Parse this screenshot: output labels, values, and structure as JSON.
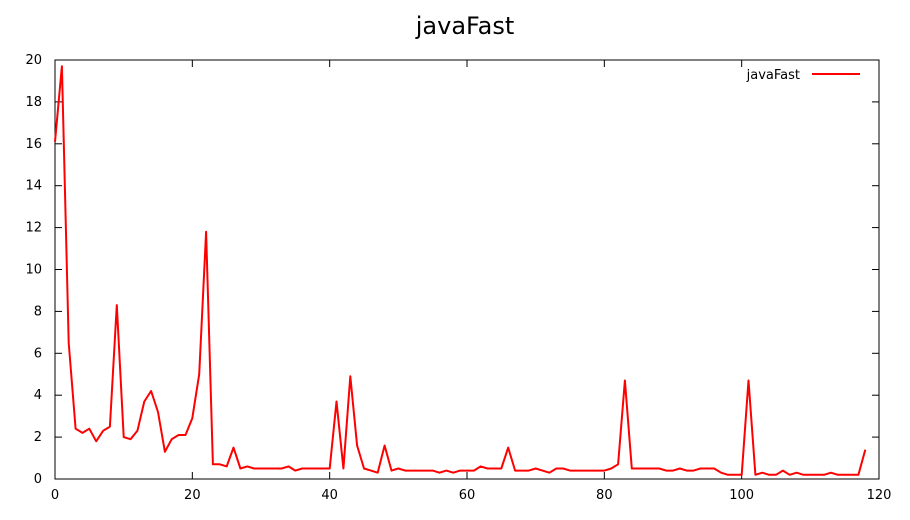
{
  "chart_data": {
    "type": "line",
    "title": "javaFast",
    "xlabel": "",
    "ylabel": "",
    "xlim": [
      0,
      120
    ],
    "ylim": [
      0,
      20
    ],
    "xticks": [
      0,
      20,
      40,
      60,
      80,
      100,
      120
    ],
    "yticks": [
      0,
      2,
      4,
      6,
      8,
      10,
      12,
      14,
      16,
      18,
      20
    ],
    "grid": false,
    "legend_position": "top-right",
    "series": [
      {
        "name": "javaFast",
        "color": "#ff0000",
        "x": [
          0,
          1,
          2,
          3,
          4,
          5,
          6,
          7,
          8,
          9,
          10,
          11,
          12,
          13,
          14,
          15,
          16,
          17,
          18,
          19,
          20,
          21,
          22,
          23,
          24,
          25,
          26,
          27,
          28,
          29,
          30,
          31,
          32,
          33,
          34,
          35,
          36,
          37,
          38,
          39,
          40,
          41,
          42,
          43,
          44,
          45,
          46,
          47,
          48,
          49,
          50,
          51,
          52,
          53,
          54,
          55,
          56,
          57,
          58,
          59,
          60,
          61,
          62,
          63,
          64,
          65,
          66,
          67,
          68,
          69,
          70,
          71,
          72,
          73,
          74,
          75,
          76,
          77,
          78,
          79,
          80,
          81,
          82,
          83,
          84,
          85,
          86,
          87,
          88,
          89,
          90,
          91,
          92,
          93,
          94,
          95,
          96,
          97,
          98,
          99,
          100,
          101,
          102,
          103,
          104,
          105,
          106,
          107,
          108,
          109,
          110,
          111,
          112,
          113,
          114,
          115,
          116,
          117,
          118
        ],
        "y": [
          16.1,
          19.7,
          6.5,
          2.4,
          2.2,
          2.4,
          1.8,
          2.3,
          2.5,
          8.3,
          2.0,
          1.9,
          2.3,
          3.7,
          4.2,
          3.2,
          1.3,
          1.9,
          2.1,
          2.1,
          2.9,
          5.0,
          11.8,
          0.7,
          0.7,
          0.6,
          1.5,
          0.5,
          0.6,
          0.5,
          0.5,
          0.5,
          0.5,
          0.5,
          0.6,
          0.4,
          0.5,
          0.5,
          0.5,
          0.5,
          0.5,
          3.7,
          0.5,
          4.9,
          1.6,
          0.5,
          0.4,
          0.3,
          1.6,
          0.4,
          0.5,
          0.4,
          0.4,
          0.4,
          0.4,
          0.4,
          0.3,
          0.4,
          0.3,
          0.4,
          0.4,
          0.4,
          0.6,
          0.5,
          0.5,
          0.5,
          1.5,
          0.4,
          0.4,
          0.4,
          0.5,
          0.4,
          0.3,
          0.5,
          0.5,
          0.4,
          0.4,
          0.4,
          0.4,
          0.4,
          0.4,
          0.5,
          0.7,
          4.7,
          0.5,
          0.5,
          0.5,
          0.5,
          0.5,
          0.4,
          0.4,
          0.5,
          0.4,
          0.4,
          0.5,
          0.5,
          0.5,
          0.3,
          0.2,
          0.2,
          0.2,
          4.7,
          0.2,
          0.3,
          0.2,
          0.2,
          0.4,
          0.2,
          0.3,
          0.2,
          0.2,
          0.2,
          0.2,
          0.3,
          0.2,
          0.2,
          0.2,
          0.2,
          1.4
        ]
      }
    ]
  }
}
